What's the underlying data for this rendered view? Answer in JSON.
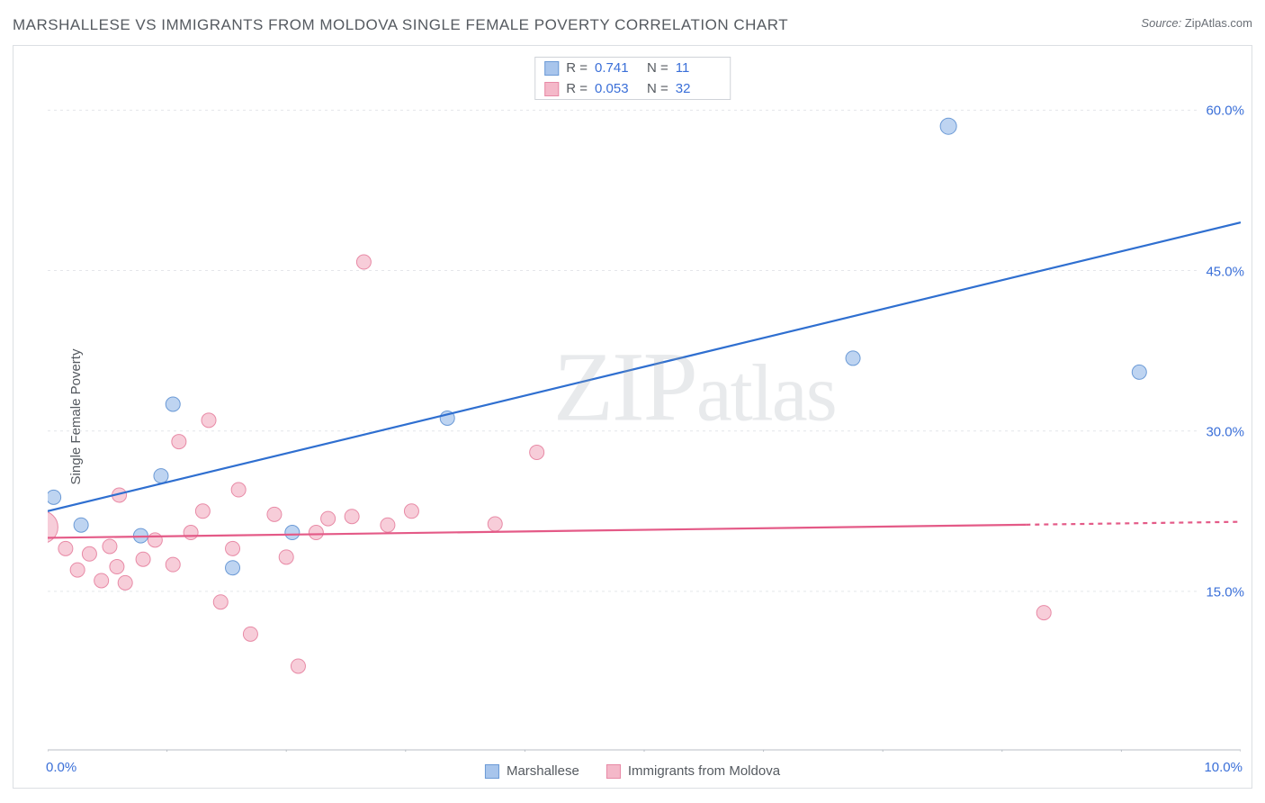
{
  "title": "MARSHALLESE VS IMMIGRANTS FROM MOLDOVA SINGLE FEMALE POVERTY CORRELATION CHART",
  "source_label": "Source:",
  "source_value": "ZipAtlas.com",
  "y_axis_label": "Single Female Poverty",
  "watermark": "ZIPatlas",
  "chart": {
    "type": "scatter",
    "xlim": [
      0,
      10
    ],
    "ylim": [
      0,
      65
    ],
    "x_ticks": [
      0,
      1,
      2,
      3,
      4,
      5,
      6,
      7,
      8,
      9,
      10
    ],
    "x_tick_labels_shown": {
      "0": "0.0%",
      "10": "10.0%"
    },
    "y_gridlines": [
      15,
      30,
      45,
      60
    ],
    "y_tick_labels": {
      "15": "15.0%",
      "30": "30.0%",
      "45": "45.0%",
      "60": "60.0%"
    },
    "background_color": "#ffffff",
    "border_color": "#dcdfe3",
    "grid_color": "#e4e6ea",
    "grid_dash": "3,4",
    "tick_font_color": "#3a6fd8",
    "axis_label_color": "#555a60",
    "series": [
      {
        "name": "Marshallese",
        "marker_fill": "#a8c5ec",
        "marker_stroke": "#6b9ad6",
        "marker_opacity": 0.75,
        "marker_radius": 8,
        "line_color": "#2f6fd0",
        "line_width": 2.2,
        "line_dash_after_x": null,
        "regression": {
          "x0": 0,
          "y0": 22.5,
          "x1": 10,
          "y1": 49.5
        },
        "R_label": "R =",
        "R_value": "0.741",
        "N_label": "N =",
        "N_value": "11",
        "points": [
          {
            "x": 0.05,
            "y": 23.8,
            "r": 8
          },
          {
            "x": 0.28,
            "y": 21.2,
            "r": 8
          },
          {
            "x": 0.78,
            "y": 20.2,
            "r": 8
          },
          {
            "x": 0.95,
            "y": 25.8,
            "r": 8
          },
          {
            "x": 1.05,
            "y": 32.5,
            "r": 8
          },
          {
            "x": 1.55,
            "y": 17.2,
            "r": 8
          },
          {
            "x": 2.05,
            "y": 20.5,
            "r": 8
          },
          {
            "x": 3.35,
            "y": 31.2,
            "r": 8
          },
          {
            "x": 6.75,
            "y": 36.8,
            "r": 8
          },
          {
            "x": 7.55,
            "y": 58.5,
            "r": 9
          },
          {
            "x": 9.15,
            "y": 35.5,
            "r": 8
          }
        ]
      },
      {
        "name": "Immigrants from Moldova",
        "marker_fill": "#f4b8c9",
        "marker_stroke": "#e88aa6",
        "marker_opacity": 0.7,
        "marker_radius": 8,
        "line_color": "#e45a87",
        "line_width": 2.2,
        "line_dash_after_x": 8.2,
        "regression": {
          "x0": 0,
          "y0": 20.0,
          "x1": 10,
          "y1": 21.5
        },
        "R_label": "R =",
        "R_value": "0.053",
        "N_label": "N =",
        "N_value": "32",
        "points": [
          {
            "x": -0.05,
            "y": 21.0,
            "r": 18
          },
          {
            "x": 0.15,
            "y": 19.0,
            "r": 8
          },
          {
            "x": 0.25,
            "y": 17.0,
            "r": 8
          },
          {
            "x": 0.35,
            "y": 18.5,
            "r": 8
          },
          {
            "x": 0.45,
            "y": 16.0,
            "r": 8
          },
          {
            "x": 0.52,
            "y": 19.2,
            "r": 8
          },
          {
            "x": 0.58,
            "y": 17.3,
            "r": 8
          },
          {
            "x": 0.6,
            "y": 24.0,
            "r": 8
          },
          {
            "x": 0.65,
            "y": 15.8,
            "r": 8
          },
          {
            "x": 0.8,
            "y": 18.0,
            "r": 8
          },
          {
            "x": 0.9,
            "y": 19.8,
            "r": 8
          },
          {
            "x": 1.05,
            "y": 17.5,
            "r": 8
          },
          {
            "x": 1.1,
            "y": 29.0,
            "r": 8
          },
          {
            "x": 1.2,
            "y": 20.5,
            "r": 8
          },
          {
            "x": 1.3,
            "y": 22.5,
            "r": 8
          },
          {
            "x": 1.35,
            "y": 31.0,
            "r": 8
          },
          {
            "x": 1.45,
            "y": 14.0,
            "r": 8
          },
          {
            "x": 1.55,
            "y": 19.0,
            "r": 8
          },
          {
            "x": 1.6,
            "y": 24.5,
            "r": 8
          },
          {
            "x": 1.7,
            "y": 11.0,
            "r": 8
          },
          {
            "x": 1.9,
            "y": 22.2,
            "r": 8
          },
          {
            "x": 2.0,
            "y": 18.2,
            "r": 8
          },
          {
            "x": 2.1,
            "y": 8.0,
            "r": 8
          },
          {
            "x": 2.25,
            "y": 20.5,
            "r": 8
          },
          {
            "x": 2.35,
            "y": 21.8,
            "r": 8
          },
          {
            "x": 2.55,
            "y": 22.0,
            "r": 8
          },
          {
            "x": 2.65,
            "y": 45.8,
            "r": 8
          },
          {
            "x": 2.85,
            "y": 21.2,
            "r": 8
          },
          {
            "x": 3.05,
            "y": 22.5,
            "r": 8
          },
          {
            "x": 3.75,
            "y": 21.3,
            "r": 8
          },
          {
            "x": 4.1,
            "y": 28.0,
            "r": 8
          },
          {
            "x": 8.35,
            "y": 13.0,
            "r": 8
          }
        ]
      }
    ]
  }
}
